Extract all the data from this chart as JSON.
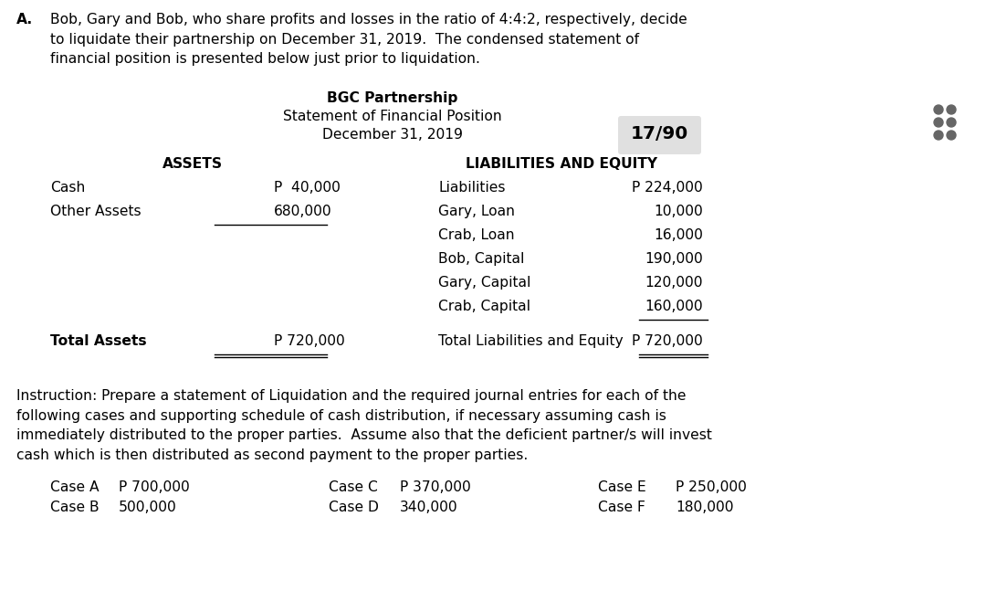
{
  "bg_color": "#ffffff",
  "title_a": "A.",
  "intro_text": "Bob, Gary and Bob, who share profits and losses in the ratio of 4:4:2, respectively, decide\nto liquidate their partnership on December 31, 2019.  The condensed statement of\nfinancial position is presented below just prior to liquidation.",
  "table_title1": "BGC Partnership",
  "table_title2": "Statement of Financial Position",
  "table_title3": "December 31, 2019",
  "page_num": "17/90",
  "col_left_header": "ASSETS",
  "col_right_header": "LIABILITIES AND EQUITY",
  "assets": [
    [
      "Cash",
      "P  40,000"
    ],
    [
      "Other Assets",
      "680,000"
    ]
  ],
  "assets_total": [
    "Total Assets",
    "P 720,000"
  ],
  "liabilities": [
    [
      "Liabilities",
      "P 224,000"
    ],
    [
      "Gary, Loan",
      "10,000"
    ],
    [
      "Crab, Loan",
      "16,000"
    ],
    [
      "Bob, Capital",
      "190,000"
    ],
    [
      "Gary, Capital",
      "120,000"
    ],
    [
      "Crab, Capital",
      "160,000"
    ]
  ],
  "liabilities_total": [
    "Total Liabilities and Equity",
    "P 720,000"
  ],
  "instruction": "Instruction: Prepare a statement of Liquidation and the required journal entries for each of the\nfollowing cases and supporting schedule of cash distribution, if necessary assuming cash is\nimmediately distributed to the proper parties.  Assume also that the deficient partner/s will invest\ncash which is then distributed as second payment to the proper parties.",
  "cases": [
    [
      "Case A",
      "P 700,000",
      "Case C",
      "P 370,000",
      "Case E",
      "P 250,000"
    ],
    [
      "Case B",
      "500,000",
      "Case D",
      "340,000",
      "Case F",
      "180,000"
    ]
  ],
  "dots_color": "#666666",
  "badge_color": "#e0e0e0"
}
